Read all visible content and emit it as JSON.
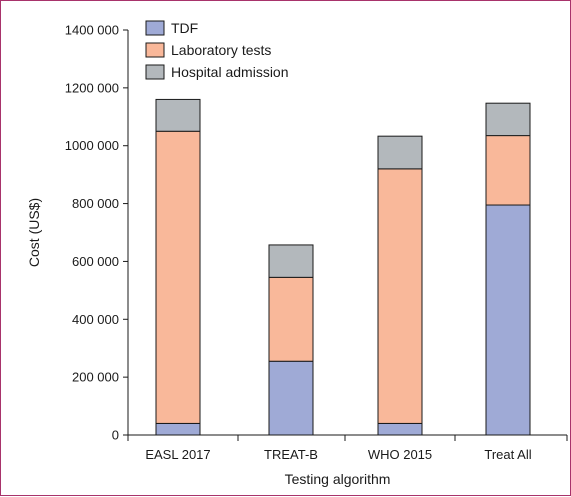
{
  "chart_data": {
    "type": "bar",
    "stacked": true,
    "categories": [
      "EASL 2017",
      "TREAT-B",
      "WHO 2015",
      "Treat All"
    ],
    "series": [
      {
        "name": "TDF",
        "color": "#9faad6",
        "values": [
          40000,
          255000,
          40000,
          795000
        ]
      },
      {
        "name": "Laboratory tests",
        "color": "#f9b89a",
        "values": [
          1010000,
          290000,
          880000,
          240000
        ]
      },
      {
        "name": "Hospital admission",
        "color": "#b3b8bc",
        "values": [
          110000,
          112000,
          113000,
          112000
        ]
      }
    ],
    "xlabel": "Testing algorithm",
    "ylabel": "Cost (US$)",
    "ylim": [
      0,
      1400000
    ],
    "yticks": [
      0,
      200000,
      400000,
      600000,
      800000,
      1000000,
      1200000,
      1400000
    ],
    "ytick_labels": [
      "0",
      "200 000",
      "400 000",
      "600 000",
      "800 000",
      "1000 000",
      "1200 000",
      "1400 000"
    ],
    "legend_position": "top-left",
    "grid": false
  }
}
